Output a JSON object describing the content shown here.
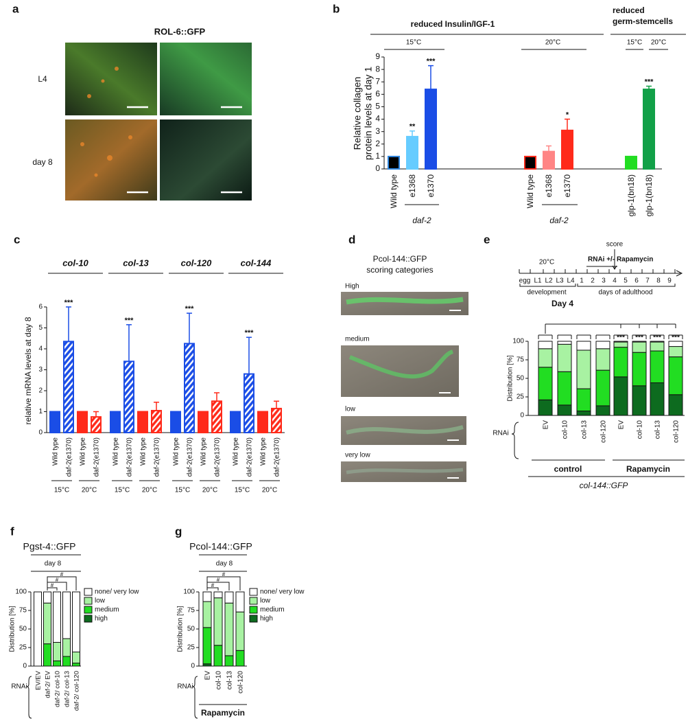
{
  "panel_letters": [
    "a",
    "b",
    "c",
    "d",
    "e",
    "f",
    "g"
  ],
  "panel_a": {
    "title": "ROL-6::GFP",
    "rows": [
      "L4",
      "day 8"
    ]
  },
  "panel_d": {
    "title": [
      "Pcol-144::GFP",
      "scoring categories"
    ],
    "categories": [
      "High",
      "medium",
      "low",
      "very low"
    ]
  },
  "chart_data": [
    {
      "type": "bar",
      "ylabel": [
        "Relative collagen",
        "protein levels at day 1"
      ],
      "group_titles": [
        [
          "reduced Insulin/IGF-1"
        ],
        [
          "reduced",
          "germ-stemcells"
        ]
      ],
      "temperatures": [
        "15°C",
        "20°C",
        "15°C",
        "20°C"
      ],
      "genotype_labels": [
        "daf-2",
        "daf-2"
      ],
      "categories": [
        "Wild type",
        "e1368",
        "e1370",
        "Wild type",
        "e1368",
        "e1370",
        "glp-1(bn18)",
        "glp-1(bn18)"
      ],
      "values": [
        1,
        2.6,
        6.4,
        1,
        1.4,
        3.1,
        1,
        6.4
      ],
      "errors": [
        null,
        0.45,
        1.9,
        null,
        0.45,
        0.9,
        null,
        0.25
      ],
      "annotations": [
        null,
        "**",
        "***",
        null,
        null,
        "*",
        null,
        "***"
      ],
      "colors": [
        "#000000",
        "#66ccff",
        "#1a4de6",
        "#000000",
        "#ff8585",
        "#ff2a1a",
        "#22dd22",
        "#12a048"
      ],
      "edge_colors": [
        "#2f86e0",
        "#66ccff",
        "#1a4de6",
        "#ff2a1a",
        "#ff8585",
        "#ff2a1a",
        "#22dd22",
        "#12a048"
      ],
      "ylim": [
        0,
        9
      ],
      "yticks": [
        0,
        1,
        2,
        3,
        4,
        5,
        6,
        7,
        8,
        9
      ]
    },
    {
      "type": "bar",
      "ylabel": "relative mRNA levels at day 8",
      "genes": [
        "col-10",
        "col-13",
        "col-120",
        "col-144"
      ],
      "categories": [
        "Wild type",
        "daf-2(e1370)",
        "Wild type",
        "daf-2(e1370)",
        "Wild type",
        "daf-2(e1370)",
        "Wild type",
        "daf-2(e1370)",
        "Wild type",
        "daf-2(e1370)",
        "Wild type",
        "daf-2(e1370)",
        "Wild type",
        "daf-2(e1370)",
        "Wild type",
        "daf-2(e1370)"
      ],
      "values": [
        1,
        4.35,
        1,
        0.75,
        1,
        3.4,
        1,
        1.05,
        1,
        4.25,
        1,
        1.5,
        1,
        2.8,
        1,
        1.15
      ],
      "errors": [
        null,
        1.65,
        null,
        0.25,
        null,
        1.75,
        null,
        0.4,
        null,
        1.45,
        null,
        0.4,
        null,
        1.75,
        null,
        0.35
      ],
      "annotations": [
        null,
        "***",
        null,
        null,
        null,
        "***",
        null,
        null,
        null,
        "***",
        null,
        null,
        null,
        "***",
        null,
        null
      ],
      "colors": [
        "#1a4de6",
        "#1a4de6",
        "#ff2a1a",
        "#ff2a1a",
        "#1a4de6",
        "#1a4de6",
        "#ff2a1a",
        "#ff2a1a",
        "#1a4de6",
        "#1a4de6",
        "#ff2a1a",
        "#ff2a1a",
        "#1a4de6",
        "#1a4de6",
        "#ff2a1a",
        "#ff2a1a"
      ],
      "hatched": [
        false,
        true,
        false,
        true,
        false,
        true,
        false,
        true,
        false,
        true,
        false,
        true,
        false,
        true,
        false,
        true
      ],
      "temperatures": [
        "15°C",
        "20°C",
        "15°C",
        "20°C",
        "15°C",
        "20°C",
        "15°C",
        "20°C"
      ],
      "temperature_colors": [
        "#1a4de6",
        "#ff2a1a",
        "#1a4de6",
        "#ff2a1a",
        "#1a4de6",
        "#ff2a1a",
        "#1a4de6",
        "#ff2a1a"
      ],
      "ylim": [
        0,
        6
      ],
      "yticks": [
        0,
        1,
        2,
        3,
        4,
        5,
        6
      ]
    },
    {
      "type": "stacked_bar",
      "title": "Day 4",
      "ylabel": "Distribution [%]",
      "categories": [
        "EV",
        "col-10",
        "col-13",
        "col-120",
        "EV",
        "col-10",
        "col-13",
        "col-120"
      ],
      "series": [
        {
          "color": "#0d6b1f",
          "values": [
            21,
            14,
            6,
            13,
            52,
            40,
            44,
            28
          ]
        },
        {
          "color": "#22dd22",
          "values": [
            44,
            45,
            30,
            48,
            40,
            45,
            43,
            51
          ]
        },
        {
          "color": "#a8f2a2",
          "values": [
            25,
            37,
            52,
            29,
            7,
            14,
            12,
            14
          ]
        },
        {
          "color": "#ffffff",
          "values": [
            10,
            4,
            12,
            10,
            1,
            1,
            1,
            7
          ]
        }
      ],
      "annotations": [
        null,
        null,
        null,
        null,
        "***",
        "***",
        "***",
        "***"
      ],
      "rnai_label": "RNAi",
      "treatments": [
        "control",
        "Rapamycin"
      ],
      "reporter": "col-144::GFP",
      "timeline": {
        "temperature": "20°C",
        "score": "score",
        "treatment": "RNAi +/- Rapamycin",
        "stages": [
          "egg",
          "L1",
          "L2",
          "L3",
          "L4",
          "1",
          "2",
          "3",
          "4",
          "5",
          "6",
          "7",
          "8",
          "9"
        ],
        "phases": [
          "development",
          "days of adulthood"
        ]
      },
      "ylim": [
        0,
        100
      ],
      "yticks": [
        0,
        25,
        50,
        75,
        100
      ]
    },
    {
      "type": "stacked_bar",
      "title": "Pgst-4::GFP",
      "subtitle": "day 8",
      "ylabel": "Distribution [%]",
      "rnai_label": "RNAi",
      "categories": [
        "EV/EV",
        "daf-2/ EV",
        "daf-2/ col-10",
        "daf-2/ col-13",
        "daf-2/ col-120"
      ],
      "series": [
        {
          "name": "high",
          "color": "#0d6b1f",
          "values": [
            0,
            0,
            0,
            0,
            0
          ]
        },
        {
          "name": "medium",
          "color": "#22dd22",
          "values": [
            0,
            30,
            7,
            13,
            4
          ]
        },
        {
          "name": "low",
          "color": "#a8f2a2",
          "values": [
            0,
            55,
            25,
            24,
            15
          ]
        },
        {
          "name": "none/ very low",
          "color": "#ffffff",
          "values": [
            100,
            15,
            68,
            63,
            81
          ]
        }
      ],
      "annotations": [
        "#",
        "#",
        "#"
      ],
      "ylim": [
        0,
        100
      ],
      "yticks": [
        0,
        25,
        50,
        75,
        100
      ]
    },
    {
      "type": "stacked_bar",
      "title": "Pcol-144::GFP",
      "subtitle": "day 8",
      "ylabel": "Distribution [%]",
      "rnai_label": "RNAi",
      "treatment": "Rapamycin",
      "categories": [
        "EV",
        "col-10",
        "col-13",
        "col-120"
      ],
      "series": [
        {
          "name": "high",
          "color": "#0d6b1f",
          "values": [
            3,
            0,
            0,
            0
          ]
        },
        {
          "name": "medium",
          "color": "#22dd22",
          "values": [
            49,
            28,
            14,
            21
          ]
        },
        {
          "name": "low",
          "color": "#a8f2a2",
          "values": [
            35,
            64,
            71,
            52
          ]
        },
        {
          "name": "none/ very low",
          "color": "#ffffff",
          "values": [
            13,
            8,
            15,
            27
          ]
        }
      ],
      "annotations": [
        "#",
        "#",
        "#"
      ],
      "ylim": [
        0,
        100
      ],
      "yticks": [
        0,
        25,
        50,
        75,
        100
      ]
    }
  ]
}
